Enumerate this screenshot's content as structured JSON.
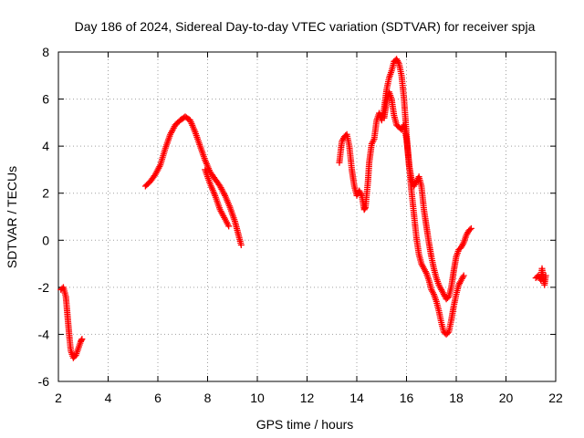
{
  "chart_data": {
    "type": "scatter",
    "title": "Day 186 of 2024, Sidereal Day-to-day VTEC variation (SDTVAR) for receiver spja",
    "xlabel": "GPS time / hours",
    "ylabel": "SDTVAR / TECUs",
    "xlim": [
      2,
      22
    ],
    "ylim": [
      -6,
      8
    ],
    "xticks": [
      2,
      4,
      6,
      8,
      10,
      12,
      14,
      16,
      18,
      20,
      22
    ],
    "yticks": [
      -6,
      -4,
      -2,
      0,
      2,
      4,
      6,
      8
    ],
    "grid": true,
    "marker": "+",
    "color": "#ff0000",
    "segments": [
      {
        "name": "segment-1",
        "points": [
          [
            2.1,
            -2.1
          ],
          [
            2.2,
            -2.0
          ],
          [
            2.3,
            -2.4
          ],
          [
            2.35,
            -3.0
          ],
          [
            2.4,
            -3.6
          ],
          [
            2.45,
            -4.2
          ],
          [
            2.5,
            -4.7
          ],
          [
            2.6,
            -5.0
          ],
          [
            2.7,
            -4.9
          ],
          [
            2.8,
            -4.6
          ],
          [
            2.9,
            -4.3
          ],
          [
            2.95,
            -4.2
          ]
        ]
      },
      {
        "name": "segment-2",
        "points": [
          [
            5.5,
            2.3
          ],
          [
            5.7,
            2.5
          ],
          [
            5.9,
            2.8
          ],
          [
            6.1,
            3.2
          ],
          [
            6.3,
            3.9
          ],
          [
            6.5,
            4.5
          ],
          [
            6.7,
            4.9
          ],
          [
            6.9,
            5.1
          ],
          [
            7.1,
            5.25
          ],
          [
            7.3,
            5.1
          ],
          [
            7.5,
            4.6
          ],
          [
            7.7,
            4.0
          ],
          [
            7.9,
            3.4
          ],
          [
            8.1,
            2.9
          ],
          [
            8.3,
            2.6
          ],
          [
            8.5,
            2.3
          ],
          [
            8.7,
            1.9
          ],
          [
            8.9,
            1.4
          ],
          [
            9.1,
            0.8
          ],
          [
            9.25,
            0.2
          ],
          [
            9.35,
            -0.2
          ]
        ]
      },
      {
        "name": "segment-3",
        "points": [
          [
            7.9,
            3.0
          ],
          [
            8.1,
            2.4
          ],
          [
            8.3,
            1.9
          ],
          [
            8.5,
            1.3
          ],
          [
            8.7,
            0.9
          ],
          [
            8.85,
            0.6
          ]
        ]
      },
      {
        "name": "segment-4",
        "points": [
          [
            13.3,
            3.3
          ],
          [
            13.4,
            4.2
          ],
          [
            13.5,
            4.4
          ],
          [
            13.6,
            4.5
          ],
          [
            13.7,
            4.0
          ],
          [
            13.8,
            3.0
          ],
          [
            13.9,
            2.3
          ],
          [
            14.0,
            1.9
          ],
          [
            14.1,
            2.1
          ],
          [
            14.2,
            1.9
          ],
          [
            14.3,
            1.3
          ],
          [
            14.35,
            1.4
          ],
          [
            14.45,
            2.5
          ],
          [
            14.5,
            3.3
          ],
          [
            14.6,
            4.1
          ],
          [
            14.7,
            4.3
          ],
          [
            14.8,
            5.1
          ],
          [
            14.9,
            5.4
          ],
          [
            15.0,
            5.1
          ],
          [
            15.1,
            5.6
          ],
          [
            15.2,
            6.4
          ],
          [
            15.3,
            6.9
          ],
          [
            15.4,
            7.2
          ],
          [
            15.5,
            7.6
          ],
          [
            15.6,
            7.7
          ],
          [
            15.7,
            7.5
          ],
          [
            15.8,
            7.0
          ],
          [
            15.9,
            6.0
          ],
          [
            16.0,
            4.5
          ],
          [
            16.1,
            3.2
          ],
          [
            16.2,
            2.6
          ],
          [
            16.3,
            2.3
          ],
          [
            16.4,
            2.5
          ],
          [
            16.5,
            2.7
          ],
          [
            16.6,
            2.3
          ],
          [
            16.7,
            1.3
          ],
          [
            16.8,
            0.6
          ],
          [
            16.9,
            -0.1
          ],
          [
            17.0,
            -0.7
          ],
          [
            17.1,
            -1.2
          ],
          [
            17.2,
            -1.6
          ],
          [
            17.3,
            -1.9
          ],
          [
            17.4,
            -2.1
          ],
          [
            17.5,
            -2.3
          ],
          [
            17.6,
            -2.5
          ],
          [
            17.7,
            -2.4
          ],
          [
            17.8,
            -2.0
          ],
          [
            17.9,
            -1.3
          ],
          [
            18.0,
            -0.7
          ],
          [
            18.1,
            -0.4
          ],
          [
            18.2,
            -0.3
          ],
          [
            18.3,
            -0.1
          ],
          [
            18.4,
            0.2
          ],
          [
            18.5,
            0.4
          ],
          [
            18.6,
            0.5
          ]
        ]
      },
      {
        "name": "segment-5",
        "points": [
          [
            15.1,
            5.2
          ],
          [
            15.2,
            5.9
          ],
          [
            15.3,
            6.3
          ],
          [
            15.4,
            6.0
          ],
          [
            15.5,
            5.3
          ],
          [
            15.6,
            4.9
          ],
          [
            15.7,
            4.8
          ],
          [
            15.8,
            4.7
          ],
          [
            15.9,
            4.9
          ],
          [
            16.0,
            4.3
          ],
          [
            16.1,
            3.3
          ],
          [
            16.2,
            2.1
          ],
          [
            16.3,
            1.1
          ],
          [
            16.4,
            0.1
          ],
          [
            16.5,
            -0.6
          ],
          [
            16.6,
            -1.0
          ],
          [
            16.7,
            -1.2
          ],
          [
            16.8,
            -1.4
          ],
          [
            16.9,
            -1.7
          ],
          [
            17.0,
            -2.1
          ],
          [
            17.1,
            -2.3
          ],
          [
            17.2,
            -2.6
          ],
          [
            17.3,
            -3.0
          ],
          [
            17.4,
            -3.5
          ],
          [
            17.5,
            -3.9
          ],
          [
            17.6,
            -4.0
          ],
          [
            17.7,
            -3.9
          ],
          [
            17.8,
            -3.4
          ],
          [
            17.9,
            -2.8
          ],
          [
            18.0,
            -2.3
          ],
          [
            18.1,
            -1.9
          ],
          [
            18.2,
            -1.7
          ],
          [
            18.3,
            -1.5
          ]
        ]
      },
      {
        "name": "segment-6",
        "points": [
          [
            21.2,
            -1.6
          ],
          [
            21.3,
            -1.5
          ],
          [
            21.4,
            -1.7
          ],
          [
            21.45,
            -1.2
          ],
          [
            21.5,
            -1.6
          ],
          [
            21.55,
            -1.9
          ],
          [
            21.6,
            -1.5
          ]
        ]
      }
    ]
  }
}
